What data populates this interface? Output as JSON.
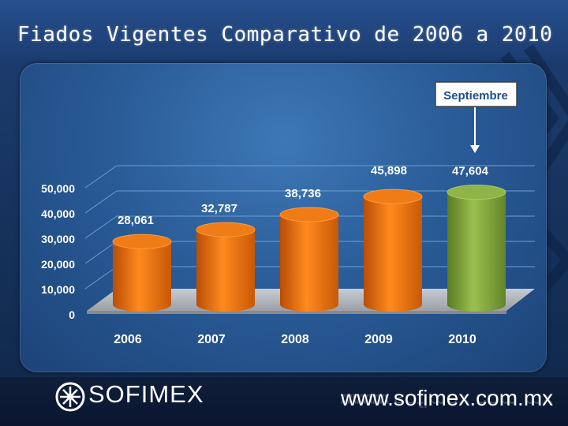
{
  "slide": {
    "title": "Fiados Vigentes Comparativo de 2006 a 2010"
  },
  "footer": {
    "brand": "SOFIMEX",
    "url": "www.sofimex.com.mx"
  },
  "colors": {
    "bar_primary": "#e8700f",
    "bar_highlight": "#7fa33c",
    "background": "#17345f",
    "panel": "#2a5c98",
    "text": "#ffffff"
  },
  "chart_data": {
    "type": "bar",
    "title": "",
    "xlabel": "",
    "ylabel": "",
    "categories": [
      "2006",
      "2007",
      "2008",
      "2009",
      "2010"
    ],
    "values": [
      28061,
      32787,
      38736,
      45898,
      47604
    ],
    "value_labels": [
      "28,061",
      "32,787",
      "38,736",
      "45,898",
      "47,604"
    ],
    "highlight_index": 4,
    "ylim": [
      0,
      50000
    ],
    "y_ticks": [
      0,
      10000,
      20000,
      30000,
      40000,
      50000
    ],
    "y_tick_labels": [
      "0",
      "10,000",
      "20,000",
      "30,000",
      "40,000",
      "50,000"
    ],
    "grid": true,
    "legend": "none",
    "annotation": {
      "text": "Septiembre",
      "target": "2010"
    }
  }
}
